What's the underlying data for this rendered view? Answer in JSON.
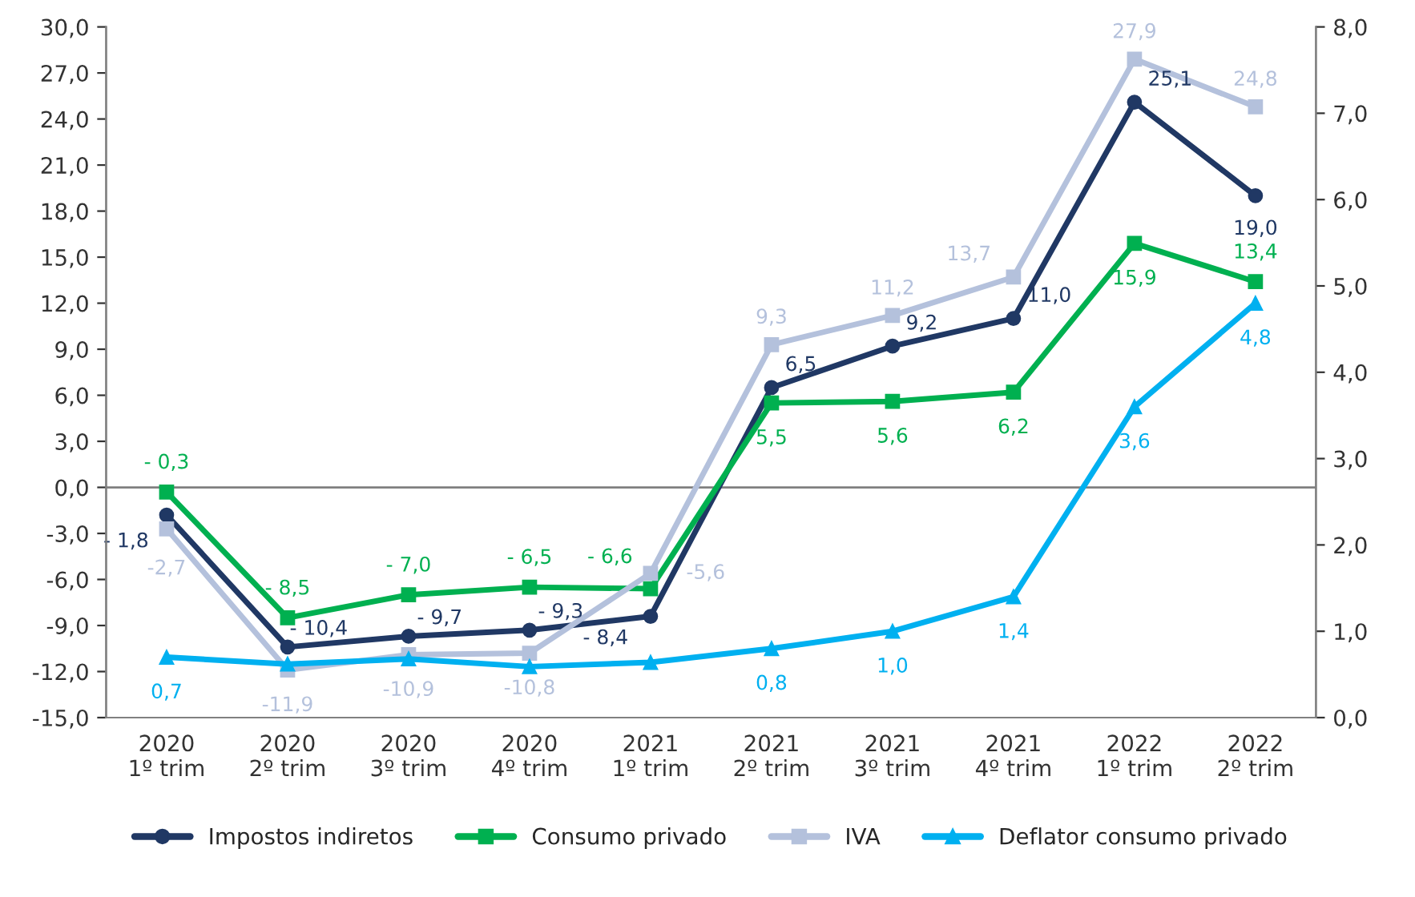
{
  "chart_data": {
    "type": "line",
    "categories": [
      "2020\n1º trim",
      "2020\n2º trim",
      "2020\n3º trim",
      "2020\n4º trim",
      "2021\n1º trim",
      "2021\n2º trim",
      "2021\n3º trim",
      "2021\n4º trim",
      "2022\n1º trim",
      "2022\n2º trim"
    ],
    "series": [
      {
        "name": "Impostos indiretos",
        "color": "#203864",
        "marker": "circle",
        "values": [
          -1.8,
          -10.4,
          -9.7,
          -9.3,
          -8.4,
          6.5,
          9.2,
          11.0,
          25.1,
          19.0
        ],
        "value_labels": [
          "- 1,8",
          "- 10,4",
          "- 9,7",
          "- 9,3",
          "- 8,4",
          "6,5",
          "9,2",
          "11,0",
          "25,1",
          "19,0"
        ]
      },
      {
        "name": "Consumo privado",
        "color": "#00b050",
        "marker": "square",
        "values": [
          -0.3,
          -8.5,
          -7.0,
          -6.5,
          -6.6,
          5.5,
          5.6,
          6.2,
          15.9,
          13.4
        ],
        "value_labels": [
          "- 0,3",
          "- 8,5",
          "- 7,0",
          "- 6,5",
          "- 6,6",
          "5,5",
          "5,6",
          "6,2",
          "15,9",
          "13,4"
        ]
      },
      {
        "name": "IVA",
        "color": "#b4c1dc",
        "marker": "square",
        "values": [
          -2.7,
          -11.9,
          -10.9,
          -10.8,
          -5.6,
          9.3,
          11.2,
          13.7,
          27.9,
          24.8
        ],
        "value_labels": [
          "-2,7",
          "-11,9",
          "-10,9",
          "-10,8",
          "-5,6",
          "9,3",
          "11,2",
          "13,7",
          "27,9",
          "24,8"
        ]
      },
      {
        "name": "Deflator consumo privado",
        "color": "#00b0f0",
        "marker": "triangle",
        "axis": "y2",
        "values": [
          0.7,
          0.62,
          0.68,
          0.59,
          0.64,
          0.8,
          1.0,
          1.4,
          3.6,
          4.8
        ],
        "value_labels": [
          "0,7",
          null,
          null,
          null,
          null,
          "0,8",
          "1,0",
          "1,4",
          "3,6",
          "4,8"
        ]
      }
    ],
    "ylim": [
      -15,
      30
    ],
    "yticks": [
      {
        "value": -15,
        "label": "-15,0"
      },
      {
        "value": -12,
        "label": "-12,0"
      },
      {
        "value": -9,
        "label": "-9,0"
      },
      {
        "value": -6,
        "label": "-6,0"
      },
      {
        "value": -3,
        "label": "-3,0"
      },
      {
        "value": 0,
        "label": "0,0"
      },
      {
        "value": 3,
        "label": "3,0"
      },
      {
        "value": 6,
        "label": "6,0"
      },
      {
        "value": 9,
        "label": "9,0"
      },
      {
        "value": 12,
        "label": "12,0"
      },
      {
        "value": 15,
        "label": "15,0"
      },
      {
        "value": 18,
        "label": "18,0"
      },
      {
        "value": 21,
        "label": "21,0"
      },
      {
        "value": 24,
        "label": "24,0"
      },
      {
        "value": 27,
        "label": "27,0"
      },
      {
        "value": 30,
        "label": "30,0"
      }
    ],
    "y2lim": [
      0,
      8
    ],
    "y2ticks": [
      {
        "value": 0,
        "label": "0,0"
      },
      {
        "value": 1,
        "label": "1,0"
      },
      {
        "value": 2,
        "label": "2,0"
      },
      {
        "value": 3,
        "label": "3,0"
      },
      {
        "value": 4,
        "label": "4,0"
      },
      {
        "value": 5,
        "label": "5,0"
      },
      {
        "value": 6,
        "label": "6,0"
      },
      {
        "value": 7,
        "label": "7,0"
      },
      {
        "value": 8,
        "label": "8,0"
      }
    ],
    "ref_lines": [
      {
        "axis": "y",
        "value": 0,
        "color": "#808080"
      }
    ],
    "grid": false,
    "legend": "bottom",
    "line_style": "solid"
  }
}
